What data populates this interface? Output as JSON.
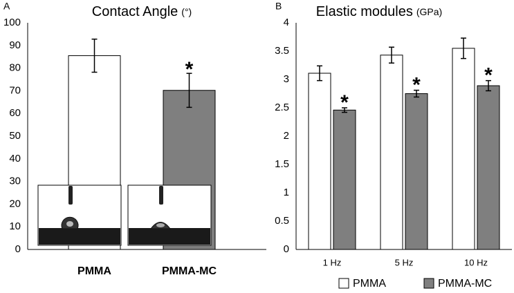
{
  "chart_data": [
    {
      "type": "bar",
      "panel_label": "A",
      "title": "Contact Angle",
      "title_unit": "(°)",
      "categories": [
        "PMMA",
        "PMMA-MC"
      ],
      "values": [
        85.5,
        70.2
      ],
      "errors": [
        7.3,
        7.5
      ],
      "colors": [
        "#ffffff",
        "#7f7f7f"
      ],
      "value_annotations": [
        null,
        "*"
      ],
      "ylim": [
        0,
        100
      ],
      "yticks": [
        0,
        10,
        20,
        30,
        40,
        50,
        60,
        70,
        80,
        90,
        100
      ]
    },
    {
      "type": "grouped_bar",
      "panel_label": "B",
      "title": "Elastic modules",
      "title_unit": "(GPa)",
      "categories": [
        "1 Hz",
        "5 Hz",
        "10 Hz"
      ],
      "series": [
        {
          "name": "PMMA",
          "color": "#ffffff",
          "values": [
            3.11,
            3.43,
            3.55
          ],
          "errors": [
            0.13,
            0.14,
            0.18
          ]
        },
        {
          "name": "PMMA-MC",
          "color": "#7f7f7f",
          "values": [
            2.46,
            2.75,
            2.89
          ],
          "errors": [
            0.04,
            0.06,
            0.09
          ],
          "value_annotations": [
            "*",
            "*",
            "*"
          ]
        }
      ],
      "ylim": [
        0,
        4
      ],
      "yticks": [
        0,
        0.5,
        1,
        1.5,
        2,
        2.5,
        3,
        3.5,
        4
      ],
      "legend": "bottom"
    }
  ]
}
